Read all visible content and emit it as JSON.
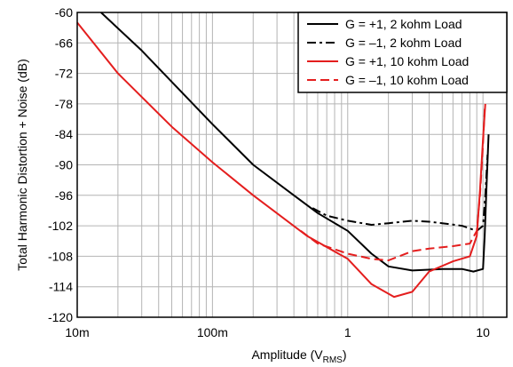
{
  "chart_data": {
    "type": "line",
    "xlabel": "Amplitude (V",
    "xlabel_sub": "RMS",
    "xlabel_end": ")",
    "ylabel": "Total Harmonic Distortion + Noise (dB)",
    "x_scale": "log",
    "xlim": [
      0.01,
      15
    ],
    "ylim": [
      -120,
      -60
    ],
    "grid": true,
    "legend_position": "top-right",
    "x_ticks": [
      {
        "value": 0.01,
        "label": "10m"
      },
      {
        "value": 0.1,
        "label": "100m"
      },
      {
        "value": 1,
        "label": "1"
      },
      {
        "value": 10,
        "label": "10"
      }
    ],
    "y_ticks": [
      -60,
      -66,
      -72,
      -78,
      -84,
      -90,
      -96,
      -102,
      -108,
      -114,
      -120
    ],
    "series": [
      {
        "name": "G = +1, 2 kohm Load",
        "color": "#000000",
        "dash": "solid",
        "points": [
          [
            0.015,
            -60
          ],
          [
            0.03,
            -67.5
          ],
          [
            0.1,
            -82
          ],
          [
            0.2,
            -90
          ],
          [
            0.4,
            -96
          ],
          [
            0.6,
            -99.5
          ],
          [
            1,
            -103
          ],
          [
            1.5,
            -107.5
          ],
          [
            2,
            -110
          ],
          [
            3,
            -110.8
          ],
          [
            5,
            -110.5
          ],
          [
            7,
            -110.5
          ],
          [
            8.5,
            -111
          ],
          [
            10,
            -110.5
          ],
          [
            10.3,
            -104
          ],
          [
            10.6,
            -95
          ],
          [
            11,
            -84
          ]
        ]
      },
      {
        "name": "G = –1, 2 kohm Load",
        "color": "#000000",
        "dash": "dashdot",
        "points": [
          [
            0.55,
            -98.5
          ],
          [
            0.7,
            -100
          ],
          [
            1,
            -101
          ],
          [
            1.5,
            -101.8
          ],
          [
            2,
            -101.5
          ],
          [
            3,
            -101
          ],
          [
            4,
            -101.2
          ],
          [
            5,
            -101.5
          ],
          [
            7,
            -102
          ],
          [
            9,
            -103
          ],
          [
            10,
            -102
          ],
          [
            10.4,
            -96
          ],
          [
            10.8,
            -88
          ]
        ]
      },
      {
        "name": "G = +1, 10 kohm Load",
        "color": "#e41e1e",
        "dash": "solid",
        "points": [
          [
            0.01,
            -62
          ],
          [
            0.02,
            -72
          ],
          [
            0.05,
            -82.5
          ],
          [
            0.1,
            -89.5
          ],
          [
            0.2,
            -96
          ],
          [
            0.5,
            -104
          ],
          [
            1,
            -108.5
          ],
          [
            1.5,
            -113.5
          ],
          [
            2.2,
            -116
          ],
          [
            3,
            -115
          ],
          [
            4,
            -111
          ],
          [
            6,
            -109
          ],
          [
            8,
            -108
          ],
          [
            9,
            -104
          ],
          [
            9.5,
            -95
          ],
          [
            10,
            -85
          ],
          [
            10.4,
            -78
          ]
        ]
      },
      {
        "name": "G = –1, 10 kohm Load",
        "color": "#e41e1e",
        "dash": "dashed",
        "points": [
          [
            0.45,
            -103
          ],
          [
            0.6,
            -105.5
          ],
          [
            1,
            -107.5
          ],
          [
            1.5,
            -108.5
          ],
          [
            2,
            -108.8
          ],
          [
            3,
            -107
          ],
          [
            4,
            -106.5
          ],
          [
            6,
            -106
          ],
          [
            8,
            -105.5
          ],
          [
            9,
            -103
          ],
          [
            9.5,
            -96
          ],
          [
            10,
            -86
          ],
          [
            10.3,
            -79
          ]
        ]
      }
    ]
  }
}
